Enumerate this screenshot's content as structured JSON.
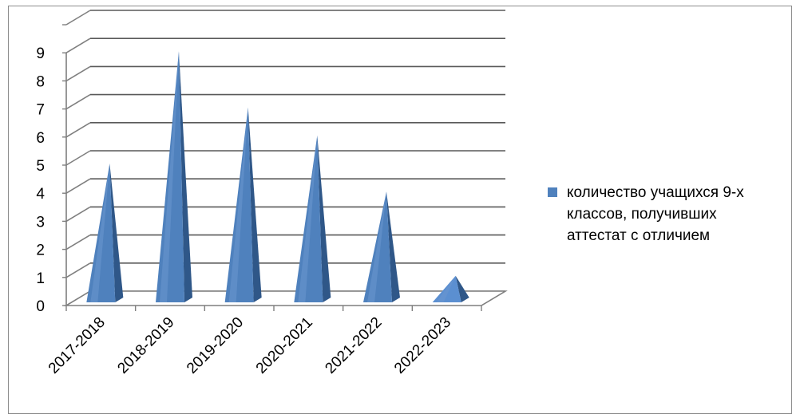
{
  "chart_data": {
    "type": "bar",
    "style": "3d-pyramid",
    "categories": [
      "2017-2018",
      "2018-2019",
      "2019-2020",
      "2020-2021",
      "2021-2022",
      "2022-2023"
    ],
    "series": [
      {
        "name": "количество учащихся 9-х классов, получивших аттестат с отличием",
        "values": [
          5,
          9,
          7,
          6,
          4,
          1
        ],
        "color": "#4f81bd"
      }
    ],
    "y_ticks": [
      "0",
      "1",
      "2",
      "3",
      "4",
      "5",
      "6",
      "7",
      "8",
      "9"
    ],
    "ylim": [
      0,
      9
    ],
    "grid": true,
    "legend_position": "right"
  }
}
